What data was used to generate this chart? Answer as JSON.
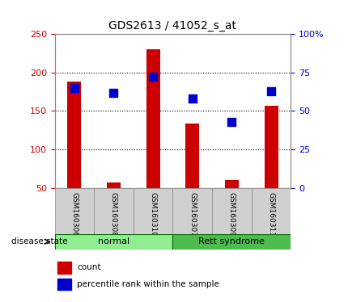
{
  "title": "GDS2613 / 41052_s_at",
  "samples": [
    "GSM160306",
    "GSM160308",
    "GSM160310",
    "GSM160307",
    "GSM160309",
    "GSM160311"
  ],
  "counts": [
    188,
    57,
    230,
    134,
    60,
    157
  ],
  "percentile_ranks": [
    65,
    62,
    72,
    58,
    43,
    63
  ],
  "left_ylim": [
    50,
    250
  ],
  "left_yticks": [
    50,
    100,
    150,
    200,
    250
  ],
  "right_ylim": [
    0,
    100
  ],
  "right_yticks": [
    0,
    25,
    50,
    75,
    100
  ],
  "right_yticklabels": [
    "0",
    "25",
    "50",
    "75",
    "100%"
  ],
  "bar_color": "#cc0000",
  "dot_color": "#0000cc",
  "bar_width": 0.35,
  "dot_size": 50,
  "normal_color": "#90ee90",
  "rett_color": "#4dbb4d",
  "group_border_color": "#006600",
  "gray_box_color": "#d0d0d0",
  "gray_box_edge": "#888888",
  "xlabel_text": "disease state",
  "group_label_normal": "normal",
  "group_label_rett": "Rett syndrome",
  "legend_count": "count",
  "legend_percentile": "percentile rank within the sample",
  "title_fontsize": 10,
  "tick_fontsize": 8,
  "sample_fontsize": 6.5,
  "group_fontsize": 8,
  "legend_fontsize": 7.5
}
